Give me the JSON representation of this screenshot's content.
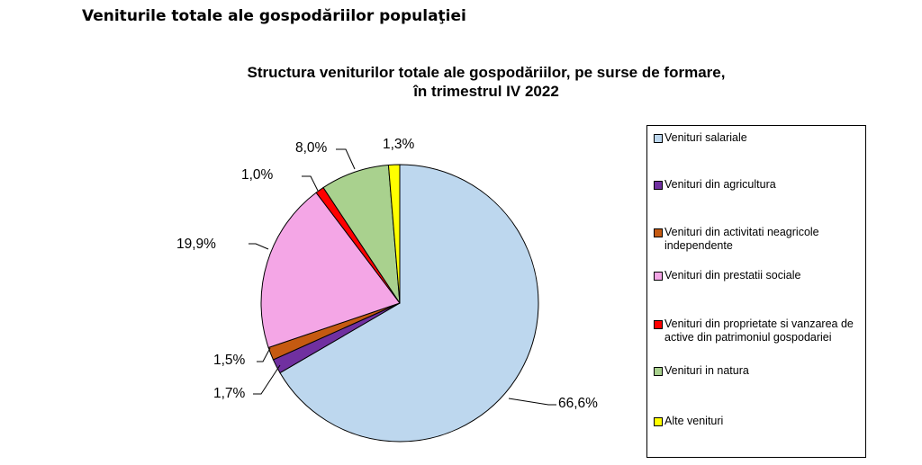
{
  "document": {
    "heading": "Veniturile totale ale gospodăriilor populaţiei"
  },
  "chart_data": {
    "type": "pie",
    "title_lines": [
      "Structura veniturilor totale ale gospodăriilor, pe surse de formare,",
      "în trimestrul IV 2022"
    ],
    "legend_position": "right",
    "slices": [
      {
        "name": "Venituri salariale",
        "value": 66.6,
        "label": "66,6%",
        "color": "#bdd7ee"
      },
      {
        "name": "Venituri din agricultura",
        "value": 1.7,
        "label": "1,7%",
        "color": "#7030a0"
      },
      {
        "name": "Venituri din activitati neagricole independente",
        "value": 1.5,
        "label": "1,5%",
        "color": "#c55a11"
      },
      {
        "name": "Venituri din prestatii sociale",
        "value": 19.9,
        "label": "19,9%",
        "color": "#f4a6e6"
      },
      {
        "name": "Venituri din proprietate si vanzarea de active din patrimoniul gospodariei",
        "value": 1.0,
        "label": "1,0%",
        "color": "#ff0000"
      },
      {
        "name": "Venituri in natura",
        "value": 8.0,
        "label": "8,0%",
        "color": "#a9d18e"
      },
      {
        "name": "Alte venituri",
        "value": 1.3,
        "label": "1,3%",
        "color": "#ffff00"
      }
    ]
  }
}
